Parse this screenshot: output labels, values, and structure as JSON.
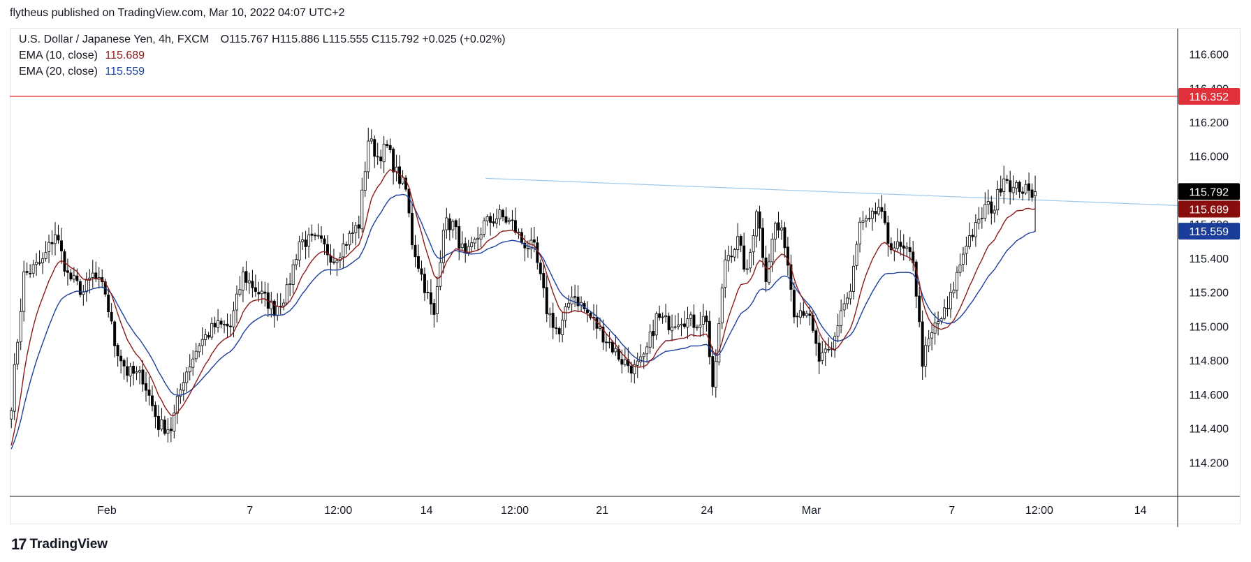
{
  "publisher_line": "flytheus published on TradingView.com, Mar 10, 2022 04:07 UTC+2",
  "legend": {
    "symbol": "U.S. Dollar / Japanese Yen, 4h, FXCM",
    "ohlc": "O115.767  H115.886  L115.555  C115.792  +0.025 (+0.02%)",
    "ema10_label": "EMA (10, close)",
    "ema10_value": "115.689",
    "ema20_label": "EMA (20, close)",
    "ema20_value": "115.559"
  },
  "brand": {
    "logo_glyph": "17",
    "name": "TradingView"
  },
  "colors": {
    "up": "#ffffff",
    "down": "#000000",
    "wick": "#000000",
    "ema10": "#8b1a1a",
    "ema20": "#1c3f9e",
    "resistance": "#e0303a",
    "trendline": "#9ec8ea",
    "last_price_bg": "#000000",
    "ema10_bg": "#880e0e",
    "ema20_bg": "#1b3d9a"
  },
  "chart_data": {
    "type": "candlestick",
    "title": "U.S. Dollar / Japanese Yen, 4h, FXCM",
    "ylim": [
      114.0,
      116.75
    ],
    "yticks": [
      "116.600",
      "116.400",
      "116.200",
      "116.000",
      "115.800",
      "115.600",
      "115.400",
      "115.200",
      "115.000",
      "114.800",
      "114.600",
      "114.400",
      "114.200"
    ],
    "xticks": [
      {
        "label": "Feb",
        "i": 30.5
      },
      {
        "label": "7",
        "i": 76.2
      },
      {
        "label": "12:00",
        "i": 104.4
      },
      {
        "label": "14",
        "i": 132.6
      },
      {
        "label": "12:00",
        "i": 160.8
      },
      {
        "label": "21",
        "i": 188.7
      },
      {
        "label": "24",
        "i": 222.2
      },
      {
        "label": "Mar",
        "i": 255.5
      },
      {
        "label": "7",
        "i": 300.4
      },
      {
        "label": "12:00",
        "i": 328.3
      },
      {
        "label": "14",
        "i": 360.6
      }
    ],
    "x_domain": [
      -0.5,
      372.5
    ],
    "price_labels": [
      {
        "value": 116.352,
        "text": "116.352",
        "role": "resistance"
      },
      {
        "value": 115.792,
        "text": "115.792",
        "role": "last"
      },
      {
        "value": 115.689,
        "text": "115.689",
        "role": "ema10"
      },
      {
        "value": 115.559,
        "text": "115.559",
        "role": "ema20"
      }
    ],
    "resistance": 116.352,
    "trendline": [
      {
        "i": 151.5,
        "y": 115.87
      },
      {
        "i": 372.5,
        "y": 115.71
      }
    ],
    "anchors": [
      [
        0,
        114.55
      ],
      [
        4,
        115.3
      ],
      [
        10,
        115.38
      ],
      [
        14,
        115.55
      ],
      [
        18,
        115.3
      ],
      [
        23,
        115.2
      ],
      [
        26,
        115.3
      ],
      [
        30,
        115.2
      ],
      [
        33,
        114.9
      ],
      [
        37,
        114.73
      ],
      [
        42,
        114.7
      ],
      [
        47,
        114.42
      ],
      [
        51,
        114.4
      ],
      [
        55,
        114.7
      ],
      [
        60,
        114.9
      ],
      [
        65,
        115.0
      ],
      [
        70,
        115.0
      ],
      [
        74,
        115.3
      ],
      [
        79,
        115.2
      ],
      [
        84,
        115.1
      ],
      [
        88,
        115.2
      ],
      [
        92,
        115.5
      ],
      [
        98,
        115.5
      ],
      [
        103,
        115.4
      ],
      [
        107,
        115.5
      ],
      [
        111,
        115.6
      ],
      [
        114,
        116.1
      ],
      [
        117,
        116.0
      ],
      [
        120,
        116.05
      ],
      [
        123,
        115.9
      ],
      [
        126,
        115.8
      ],
      [
        128,
        115.5
      ],
      [
        131,
        115.3
      ],
      [
        135,
        115.05
      ],
      [
        138,
        115.6
      ],
      [
        141,
        115.6
      ],
      [
        145,
        115.4
      ],
      [
        147,
        115.45
      ],
      [
        151,
        115.6
      ],
      [
        156,
        115.65
      ],
      [
        160,
        115.6
      ],
      [
        163,
        115.5
      ],
      [
        167,
        115.45
      ],
      [
        171,
        115.1
      ],
      [
        175,
        114.95
      ],
      [
        179,
        115.2
      ],
      [
        183,
        115.1
      ],
      [
        187,
        115.0
      ],
      [
        191,
        114.9
      ],
      [
        195,
        114.8
      ],
      [
        199,
        114.75
      ],
      [
        202,
        114.8
      ],
      [
        206,
        115.05
      ],
      [
        210,
        115.02
      ],
      [
        214,
        115.05
      ],
      [
        218,
        115.02
      ],
      [
        222,
        115.05
      ],
      [
        224,
        114.6
      ],
      [
        228,
        115.4
      ],
      [
        232,
        115.5
      ],
      [
        235,
        115.3
      ],
      [
        238,
        115.7
      ],
      [
        241,
        115.3
      ],
      [
        244,
        115.6
      ],
      [
        247,
        115.5
      ],
      [
        250,
        115.1
      ],
      [
        254,
        115.1
      ],
      [
        258,
        114.8
      ],
      [
        262,
        114.85
      ],
      [
        265,
        115.1
      ],
      [
        268,
        115.2
      ],
      [
        271,
        115.6
      ],
      [
        274,
        115.6
      ],
      [
        277,
        115.7
      ],
      [
        280,
        115.5
      ],
      [
        284,
        115.45
      ],
      [
        288,
        115.4
      ],
      [
        291,
        114.8
      ],
      [
        295,
        115.0
      ],
      [
        299,
        115.1
      ],
      [
        302,
        115.3
      ],
      [
        305,
        115.5
      ],
      [
        309,
        115.6
      ],
      [
        311,
        115.7
      ],
      [
        314,
        115.7
      ],
      [
        317,
        115.9
      ],
      [
        320,
        115.8
      ],
      [
        322,
        115.82
      ],
      [
        325,
        115.78
      ],
      [
        327,
        115.792
      ]
    ],
    "ohlc_last": {
      "open": 115.767,
      "high": 115.886,
      "low": 115.555,
      "close": 115.792
    },
    "series": [
      {
        "name": "EMA (10, close)",
        "period": 10,
        "last": 115.689
      },
      {
        "name": "EMA (20, close)",
        "period": 20,
        "last": 115.559
      }
    ],
    "grid": false,
    "legend_position": "top-left"
  }
}
